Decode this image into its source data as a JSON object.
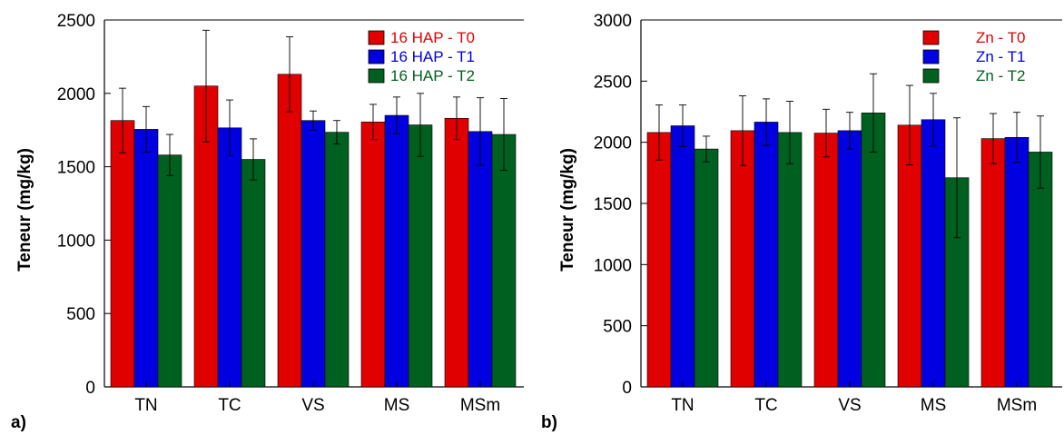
{
  "chart_data": [
    {
      "type": "bar",
      "panel_label": "a)",
      "title": "",
      "xlabel": "",
      "ylabel": "Teneur (mg/kg)",
      "ylim": [
        0,
        2500
      ],
      "yticks": [
        0,
        500,
        1000,
        1500,
        2000,
        2500
      ],
      "categories": [
        "TN",
        "TC",
        "VS",
        "MS",
        "MSm"
      ],
      "legend_position": "top-right",
      "series": [
        {
          "name": "16 HAP - T0",
          "color": "#e00000",
          "values": [
            1815,
            2050,
            2130,
            1805,
            1830
          ],
          "errors": [
            220,
            380,
            255,
            120,
            145
          ]
        },
        {
          "name": "16 HAP - T1",
          "color": "#0000e0",
          "values": [
            1755,
            1765,
            1815,
            1850,
            1740
          ],
          "errors": [
            155,
            190,
            65,
            125,
            230
          ]
        },
        {
          "name": "16 HAP - T2",
          "color": "#006020",
          "values": [
            1580,
            1550,
            1735,
            1785,
            1720
          ],
          "errors": [
            140,
            140,
            80,
            215,
            245
          ]
        }
      ]
    },
    {
      "type": "bar",
      "panel_label": "b)",
      "title": "",
      "xlabel": "",
      "ylabel": "Teneur (mg/kg)",
      "ylim": [
        0,
        3000
      ],
      "yticks": [
        0,
        500,
        1000,
        1500,
        2000,
        2500,
        3000
      ],
      "categories": [
        "TN",
        "TC",
        "VS",
        "MS",
        "MSm"
      ],
      "legend_position": "top-right",
      "series": [
        {
          "name": "Zn - T0",
          "color": "#e00000",
          "values": [
            2080,
            2095,
            2075,
            2140,
            2030
          ],
          "errors": [
            225,
            285,
            195,
            325,
            205
          ]
        },
        {
          "name": "Zn - T1",
          "color": "#0000e0",
          "values": [
            2135,
            2165,
            2095,
            2185,
            2040
          ],
          "errors": [
            170,
            190,
            150,
            215,
            205
          ]
        },
        {
          "name": "Zn - T2",
          "color": "#006020",
          "values": [
            1945,
            2080,
            2240,
            1710,
            1920
          ],
          "errors": [
            105,
            255,
            320,
            490,
            295
          ]
        }
      ]
    }
  ]
}
